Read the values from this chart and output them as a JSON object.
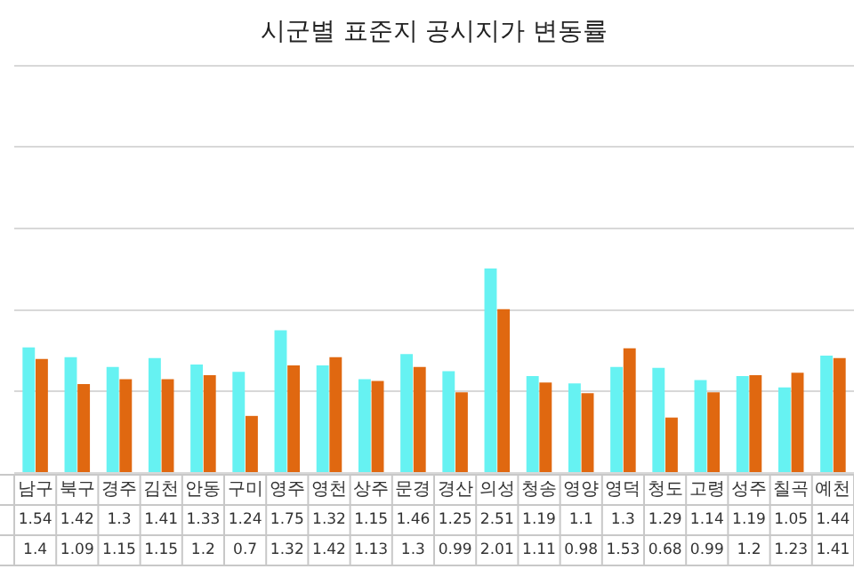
{
  "chart_data": {
    "type": "bar",
    "title": "시군별 표준지 공시지가 변동률",
    "categories": [
      "남구",
      "북구",
      "경주",
      "김천",
      "안동",
      "구미",
      "영주",
      "영천",
      "상주",
      "문경",
      "경산",
      "의성",
      "청송",
      "영양",
      "영덕",
      "청도",
      "고령",
      "성주",
      "칠곡",
      "예천"
    ],
    "series": [
      {
        "color": "#66f2f2",
        "values": [
          1.54,
          1.42,
          1.3,
          1.41,
          1.33,
          1.24,
          1.75,
          1.32,
          1.15,
          1.46,
          1.25,
          2.51,
          1.19,
          1.1,
          1.3,
          1.29,
          1.14,
          1.19,
          1.05,
          1.44
        ]
      },
      {
        "color": "#e06810",
        "values": [
          1.4,
          1.09,
          1.15,
          1.15,
          1.2,
          0.7,
          1.32,
          1.42,
          1.13,
          1.3,
          0.99,
          2.01,
          1.11,
          0.98,
          1.53,
          0.68,
          0.99,
          1.2,
          1.23,
          1.41
        ]
      }
    ],
    "ylim": [
      0,
      5
    ],
    "yticks": [
      0,
      1,
      2,
      3,
      4,
      5
    ],
    "grid": "y",
    "tick_labels": "x",
    "data_labels": true,
    "legend": false
  }
}
